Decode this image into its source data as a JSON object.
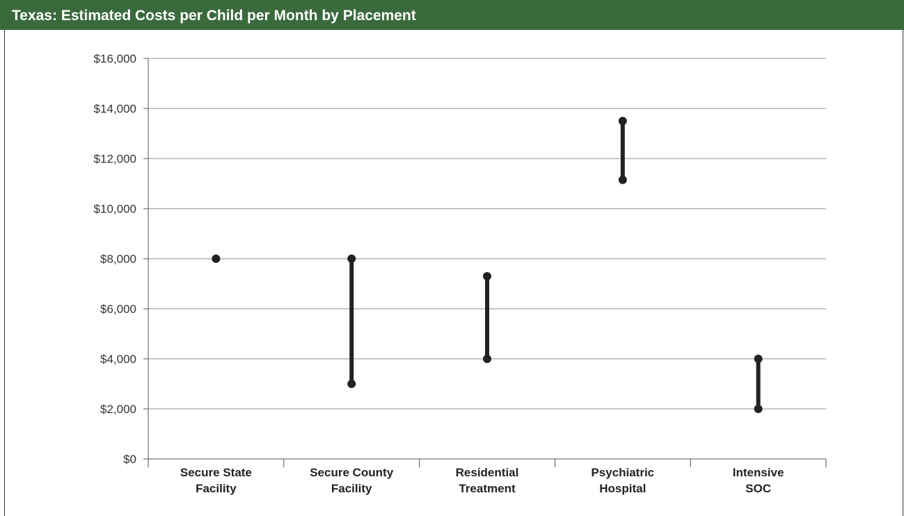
{
  "header": {
    "title": "Texas: Estimated Costs per Child per Month by Placement"
  },
  "colors": {
    "header_bg": "#3a6a3c",
    "marker": "#222222",
    "grid": "#8c8c8c"
  },
  "chart_data": {
    "type": "range",
    "title": "Texas: Estimated Costs per Child per Month by Placement",
    "xlabel": "",
    "ylabel": "",
    "ylim": [
      0,
      16000
    ],
    "grid": true,
    "y_ticks": [
      "$0",
      "$2,000",
      "$4,000",
      "$6,000",
      "$8,000",
      "$10,000",
      "$12,000",
      "$14,000",
      "$16,000"
    ],
    "y_tick_values": [
      0,
      2000,
      4000,
      6000,
      8000,
      10000,
      12000,
      14000,
      16000
    ],
    "categories": [
      [
        "Secure State",
        "Facility"
      ],
      [
        "Secure County",
        "Facility"
      ],
      [
        "Residential",
        "Treatment"
      ],
      [
        "Psychiatric",
        "Hospital"
      ],
      [
        "Intensive",
        "SOC"
      ]
    ],
    "ranges": [
      {
        "low": 8000,
        "high": 8000
      },
      {
        "low": 3000,
        "high": 8000
      },
      {
        "low": 4000,
        "high": 7300
      },
      {
        "low": 11150,
        "high": 13500
      },
      {
        "low": 2000,
        "high": 4000
      }
    ]
  }
}
